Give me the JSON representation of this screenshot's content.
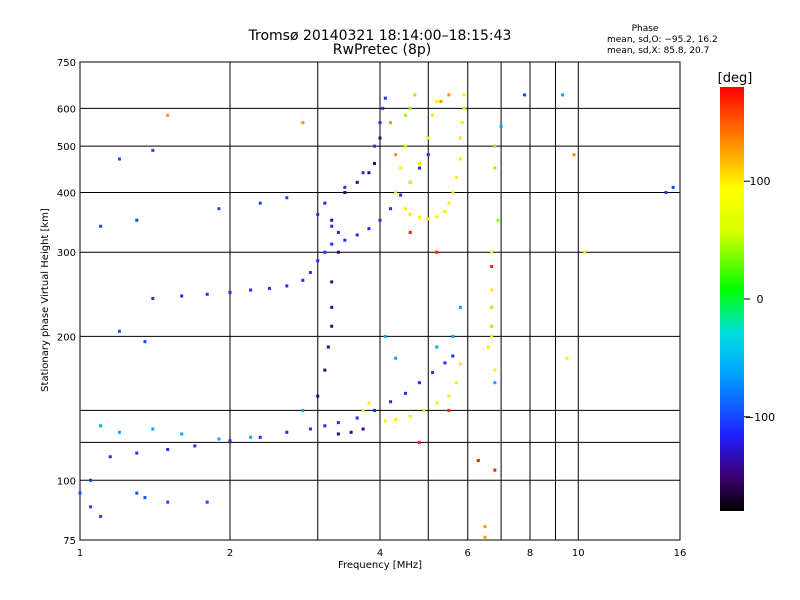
{
  "chart_data": {
    "type": "scatter",
    "title": "Tromsø 20140321 18:14:00–18:15:43",
    "subtitle": "RwPretec (8p)",
    "xlabel": "Frequency [MHz]",
    "ylabel": "Stationary phase Virtual Height [km]",
    "x_scale": "log",
    "y_scale": "log",
    "xlim": [
      1,
      16
    ],
    "ylim": [
      75,
      750
    ],
    "x_ticks": [
      1,
      2,
      4,
      6,
      8,
      10,
      16
    ],
    "x_tick_labels": [
      "1",
      "2",
      "4",
      "6",
      "8",
      "10",
      "16"
    ],
    "x_gridlines": [
      1,
      2,
      3,
      4,
      5,
      6,
      7,
      8,
      9,
      10,
      16
    ],
    "y_ticks": [
      75,
      100,
      200,
      300,
      400,
      500,
      600,
      750
    ],
    "y_tick_labels": [
      "75",
      "100",
      "200",
      "300",
      "400",
      "500",
      "600",
      "750"
    ],
    "y_gridlines": [
      75,
      100,
      120,
      140,
      200,
      300,
      400,
      500,
      600,
      750
    ],
    "grid": true,
    "stats": {
      "heading": "Phase",
      "o_line": "mean, sd,O: −95.2, 16.2",
      "x_line": "mean, sd,X:  85.8, 20.7"
    },
    "colorbar": {
      "label": "[deg]",
      "range": [
        -180,
        180
      ],
      "ticks": [
        100,
        0,
        -100
      ],
      "tick_labels": [
        "100",
        "0",
        "−100"
      ],
      "colormap": "rainbow"
    },
    "series": [
      {
        "color_value": -110,
        "points": [
          [
            1.05,
            100
          ],
          [
            1.15,
            112
          ],
          [
            1.3,
            114
          ],
          [
            1.5,
            116
          ],
          [
            1.7,
            118
          ],
          [
            2.0,
            121
          ],
          [
            2.3,
            123
          ],
          [
            2.6,
            126
          ],
          [
            2.9,
            128
          ],
          [
            3.1,
            130
          ],
          [
            3.3,
            132
          ],
          [
            3.6,
            135
          ],
          [
            3.9,
            140
          ],
          [
            4.2,
            146
          ],
          [
            4.5,
            152
          ],
          [
            4.8,
            160
          ],
          [
            5.1,
            168
          ],
          [
            5.4,
            176
          ],
          [
            5.6,
            182
          ],
          [
            1.4,
            240
          ],
          [
            1.6,
            243
          ],
          [
            1.8,
            245
          ],
          [
            2.0,
            247
          ],
          [
            2.2,
            250
          ],
          [
            2.4,
            252
          ],
          [
            2.6,
            255
          ],
          [
            2.8,
            262
          ],
          [
            2.9,
            272
          ],
          [
            3.0,
            288
          ],
          [
            3.1,
            300
          ],
          [
            3.2,
            312
          ],
          [
            3.4,
            318
          ],
          [
            3.6,
            326
          ],
          [
            3.8,
            336
          ],
          [
            4.0,
            350
          ],
          [
            4.2,
            370
          ],
          [
            4.4,
            395
          ],
          [
            4.6,
            420
          ],
          [
            4.8,
            450
          ],
          [
            5.0,
            480
          ],
          [
            3.0,
            360
          ],
          [
            3.1,
            380
          ],
          [
            3.4,
            410
          ],
          [
            3.7,
            440
          ],
          [
            3.9,
            500
          ],
          [
            4.0,
            560
          ],
          [
            4.05,
            600
          ],
          [
            4.1,
            630
          ],
          [
            3.2,
            340
          ],
          [
            3.3,
            330
          ]
        ]
      },
      {
        "color_value": -150,
        "points": [
          [
            3.0,
            150
          ],
          [
            3.1,
            170
          ],
          [
            3.15,
            190
          ],
          [
            3.2,
            210
          ],
          [
            3.2,
            230
          ],
          [
            3.2,
            260
          ],
          [
            3.3,
            300
          ],
          [
            3.2,
            350
          ],
          [
            3.4,
            400
          ],
          [
            3.6,
            420
          ],
          [
            3.8,
            440
          ],
          [
            3.9,
            460
          ],
          [
            4.0,
            520
          ],
          [
            3.3,
            125
          ],
          [
            3.5,
            126
          ],
          [
            3.7,
            128
          ]
        ]
      },
      {
        "color_value": 100,
        "points": [
          [
            3.7,
            140
          ],
          [
            3.8,
            145
          ],
          [
            4.1,
            133
          ],
          [
            4.3,
            134
          ],
          [
            4.6,
            136
          ],
          [
            4.9,
            140
          ],
          [
            5.2,
            145
          ],
          [
            5.5,
            150
          ],
          [
            5.7,
            160
          ],
          [
            5.8,
            175
          ],
          [
            4.5,
            370
          ],
          [
            4.6,
            360
          ],
          [
            4.8,
            355
          ],
          [
            5.0,
            352
          ],
          [
            5.2,
            356
          ],
          [
            5.4,
            365
          ],
          [
            5.5,
            380
          ],
          [
            5.6,
            400
          ],
          [
            5.7,
            430
          ],
          [
            5.8,
            470
          ],
          [
            5.8,
            520
          ],
          [
            5.85,
            560
          ],
          [
            5.9,
            600
          ],
          [
            5.9,
            640
          ],
          [
            4.6,
            420
          ],
          [
            4.8,
            460
          ],
          [
            5.0,
            520
          ],
          [
            5.1,
            580
          ],
          [
            5.2,
            620
          ],
          [
            4.3,
            400
          ],
          [
            4.4,
            450
          ],
          [
            4.5,
            500
          ],
          [
            6.6,
            190
          ],
          [
            6.7,
            200
          ],
          [
            6.8,
            170
          ],
          [
            6.7,
            250
          ],
          [
            6.7,
            300
          ],
          [
            9.5,
            180
          ],
          [
            10.3,
            300
          ]
        ]
      },
      {
        "color_value": 40,
        "points": [
          [
            4.5,
            580
          ],
          [
            4.6,
            600
          ],
          [
            4.7,
            640
          ],
          [
            6.7,
            230
          ],
          [
            6.7,
            210
          ],
          [
            6.9,
            350
          ],
          [
            6.8,
            450
          ],
          [
            6.8,
            500
          ]
        ]
      },
      {
        "color_value": -60,
        "points": [
          [
            1.1,
            130
          ],
          [
            1.2,
            126
          ],
          [
            1.4,
            128
          ],
          [
            1.6,
            125
          ],
          [
            1.9,
            122
          ],
          [
            2.2,
            123
          ],
          [
            2.8,
            140
          ],
          [
            5.2,
            190
          ],
          [
            5.6,
            200
          ],
          [
            5.8,
            230
          ],
          [
            6.8,
            160
          ],
          [
            7.0,
            550
          ],
          [
            9.3,
            640
          ],
          [
            4.1,
            200
          ],
          [
            4.3,
            180
          ]
        ]
      },
      {
        "color_value": 170,
        "points": [
          [
            4.6,
            330
          ],
          [
            5.2,
            300
          ],
          [
            6.3,
            110
          ],
          [
            6.7,
            280
          ],
          [
            6.8,
            105
          ],
          [
            4.8,
            120
          ],
          [
            5.5,
            140
          ]
        ]
      },
      {
        "color_value": -100,
        "points": [
          [
            1.0,
            94
          ],
          [
            1.05,
            88
          ],
          [
            1.1,
            84
          ],
          [
            1.3,
            94
          ],
          [
            1.35,
            92
          ],
          [
            1.5,
            90
          ],
          [
            1.8,
            90
          ],
          [
            1.2,
            470
          ],
          [
            1.4,
            490
          ],
          [
            1.1,
            340
          ],
          [
            1.3,
            350
          ],
          [
            1.9,
            370
          ],
          [
            2.3,
            380
          ],
          [
            2.6,
            390
          ],
          [
            1.2,
            205
          ],
          [
            1.35,
            195
          ],
          [
            7.8,
            640
          ],
          [
            15,
            400
          ],
          [
            15.5,
            410
          ]
        ]
      },
      {
        "color_value": 130,
        "points": [
          [
            6.5,
            80
          ],
          [
            6.5,
            76
          ],
          [
            4.2,
            560
          ],
          [
            9.8,
            480
          ],
          [
            1.5,
            580
          ],
          [
            2.8,
            560
          ],
          [
            4.3,
            480
          ],
          [
            5.5,
            640
          ],
          [
            5.3,
            620
          ]
        ]
      }
    ]
  }
}
